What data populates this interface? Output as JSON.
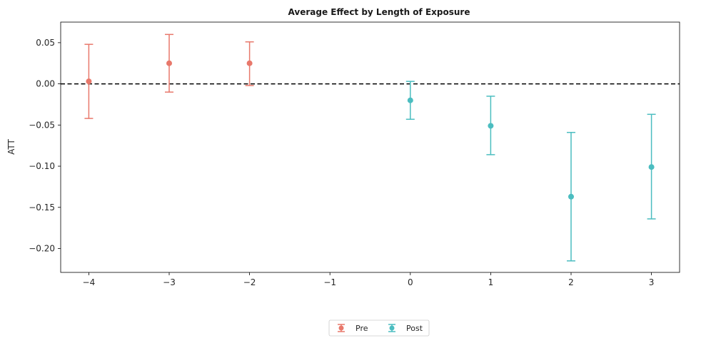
{
  "chart_data": {
    "type": "scatter",
    "title": "Average Effect by Length of Exposure",
    "xlabel": "",
    "ylabel": "ATT",
    "xlim": [
      -4.35,
      3.35
    ],
    "ylim": [
      -0.229,
      0.075
    ],
    "x_ticks": [
      -4,
      -3,
      -2,
      -1,
      0,
      1,
      2,
      3
    ],
    "x_tick_labels": [
      "−4",
      "−3",
      "−2",
      "−1",
      "0",
      "1",
      "2",
      "3"
    ],
    "y_ticks": [
      0.05,
      0.0,
      -0.05,
      -0.1,
      -0.15,
      -0.2
    ],
    "y_tick_labels": [
      "0.05",
      "0.00",
      "−0.05",
      "−0.10",
      "−0.15",
      "−0.20"
    ],
    "reference_line": {
      "y": 0.0,
      "style": "dashed",
      "color": "#000000"
    },
    "grid": false,
    "legend_position": "bottom-center",
    "series": [
      {
        "name": "Pre",
        "color": "#E8786B",
        "points": [
          {
            "x": -4,
            "y": 0.003,
            "lower": -0.042,
            "upper": 0.048
          },
          {
            "x": -3,
            "y": 0.025,
            "lower": -0.01,
            "upper": 0.06
          },
          {
            "x": -2,
            "y": 0.025,
            "lower": -0.002,
            "upper": 0.051
          }
        ]
      },
      {
        "name": "Post",
        "color": "#4BBDC0",
        "points": [
          {
            "x": 0,
            "y": -0.02,
            "lower": -0.043,
            "upper": 0.003
          },
          {
            "x": 1,
            "y": -0.051,
            "lower": -0.086,
            "upper": -0.015
          },
          {
            "x": 2,
            "y": -0.137,
            "lower": -0.215,
            "upper": -0.059
          },
          {
            "x": 3,
            "y": -0.101,
            "lower": -0.164,
            "upper": -0.037
          }
        ]
      }
    ]
  }
}
